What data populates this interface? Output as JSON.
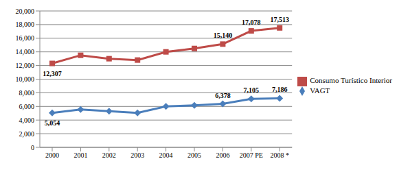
{
  "chart_data": {
    "type": "line",
    "categories": [
      "2000",
      "2001",
      "2002",
      "2003",
      "2004",
      "2005",
      "2006",
      "2007 PE",
      "2008 *"
    ],
    "series": [
      {
        "name": "VAGT",
        "color": "#4a7ebb",
        "marker": "diamond",
        "values": [
          5054,
          5550,
          5300,
          5050,
          6000,
          6150,
          6378,
          7105,
          7186
        ],
        "value_labels": [
          "5,054",
          null,
          null,
          null,
          null,
          null,
          "6,378",
          "7,105",
          "7,186"
        ]
      },
      {
        "name": "Consumo Turístico Interior",
        "color": "#be4b48",
        "marker": "square",
        "values": [
          12307,
          13500,
          13000,
          12800,
          14000,
          14500,
          15140,
          17078,
          17513
        ],
        "value_labels": [
          "12,307",
          null,
          null,
          null,
          null,
          null,
          "15,140",
          "17,078",
          "17,513"
        ]
      }
    ],
    "ylim": [
      0,
      20000
    ],
    "yticks": [
      0,
      {
        "value": 2000,
        "label": "2,000"
      },
      {
        "value": 4000,
        "label": "4,000"
      },
      {
        "value": 6000,
        "label": "6,000"
      },
      {
        "value": 8000,
        "label": "8,000"
      },
      {
        "value": 10000,
        "label": "10,000"
      },
      {
        "value": 12000,
        "label": "12,000"
      },
      {
        "value": 14000,
        "label": "14,000"
      },
      {
        "value": 16000,
        "label": "16,000"
      },
      {
        "value": 18000,
        "label": "18,000"
      },
      {
        "value": 20000,
        "label": "20,000"
      }
    ],
    "grid": true,
    "legend": "right",
    "data_labels": true
  }
}
